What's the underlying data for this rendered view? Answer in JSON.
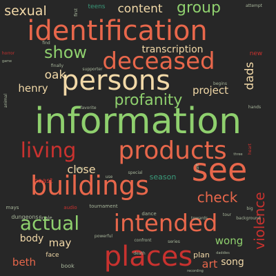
{
  "palette": {
    "background": "#272727",
    "green": "#8fd06e",
    "red": "#c9322f",
    "orange": "#e8674b",
    "pale": "#f2d9a8",
    "teal": "#3a9a7a",
    "dim": "#a9b79c"
  },
  "words": [
    {
      "text": "information",
      "color": "green"
    },
    {
      "text": "identification",
      "color": "orange"
    },
    {
      "text": "persons",
      "color": "pale"
    },
    {
      "text": "deceased",
      "color": "orange"
    },
    {
      "text": "products",
      "color": "orange"
    },
    {
      "text": "see",
      "color": "orange"
    },
    {
      "text": "buildings",
      "color": "orange"
    },
    {
      "text": "living",
      "color": "red"
    },
    {
      "text": "intended",
      "color": "orange"
    },
    {
      "text": "places",
      "color": "red"
    },
    {
      "text": "actual",
      "color": "green"
    },
    {
      "text": "show",
      "color": "green"
    },
    {
      "text": "profanity",
      "color": "green"
    },
    {
      "text": "sexual",
      "color": "pale"
    },
    {
      "text": "group",
      "color": "green"
    },
    {
      "text": "content",
      "color": "pale"
    },
    {
      "text": "check",
      "color": "orange"
    },
    {
      "text": "violence",
      "color": "red"
    },
    {
      "text": "transcription",
      "color": "pale"
    },
    {
      "text": "oak",
      "color": "pale"
    },
    {
      "text": "henry",
      "color": "pale"
    },
    {
      "text": "project",
      "color": "pale"
    },
    {
      "text": "dads",
      "color": "pale"
    },
    {
      "text": "close",
      "color": "pale"
    },
    {
      "text": "art",
      "color": "orange"
    },
    {
      "text": "may",
      "color": "pale"
    },
    {
      "text": "wong",
      "color": "green"
    },
    {
      "text": "song",
      "color": "pale"
    },
    {
      "text": "beth",
      "color": "orange"
    },
    {
      "text": "body",
      "color": "pale"
    },
    {
      "text": "teens",
      "color": "teal"
    },
    {
      "text": "season",
      "color": "teal"
    },
    {
      "text": "coast",
      "color": "red"
    },
    {
      "text": "plan",
      "color": "pale"
    },
    {
      "text": "new",
      "color": "red"
    },
    {
      "text": "face",
      "color": "pale"
    },
    {
      "text": "book",
      "color": "dim"
    },
    {
      "text": "finale",
      "color": "dim"
    },
    {
      "text": "dungeons",
      "color": "dim"
    },
    {
      "text": "mays",
      "color": "dim"
    },
    {
      "text": "tournament",
      "color": "dim"
    },
    {
      "text": "audio",
      "color": "red"
    },
    {
      "text": "dance",
      "color": "dim"
    },
    {
      "text": "attempt",
      "color": "dim"
    },
    {
      "text": "finally",
      "color": "dim"
    },
    {
      "text": "supporter",
      "color": "dim"
    },
    {
      "text": "favorite",
      "color": "dim"
    },
    {
      "text": "special",
      "color": "dim"
    },
    {
      "text": "background",
      "color": "dim"
    },
    {
      "text": "towards",
      "color": "dim"
    },
    {
      "text": "first",
      "color": "dim"
    },
    {
      "text": "find",
      "color": "dim"
    },
    {
      "text": "horror",
      "color": "red"
    },
    {
      "text": "animal",
      "color": "dim"
    },
    {
      "text": "hands",
      "color": "dim"
    },
    {
      "text": "confront",
      "color": "dim"
    },
    {
      "text": "powerful",
      "color": "dim"
    },
    {
      "text": "death",
      "color": "dim"
    },
    {
      "text": "use",
      "color": "dim"
    },
    {
      "text": "begins",
      "color": "dim"
    },
    {
      "text": "heart",
      "color": "red"
    },
    {
      "text": "series",
      "color": "dim"
    },
    {
      "text": "tour",
      "color": "dim"
    },
    {
      "text": "big",
      "color": "dim"
    },
    {
      "text": "daddies",
      "color": "dim"
    },
    {
      "text": "recording",
      "color": "dim"
    },
    {
      "text": "goal",
      "color": "dim"
    },
    {
      "text": "part",
      "color": "dim"
    },
    {
      "text": "three",
      "color": "dim"
    },
    {
      "text": "game",
      "color": "dim"
    }
  ]
}
